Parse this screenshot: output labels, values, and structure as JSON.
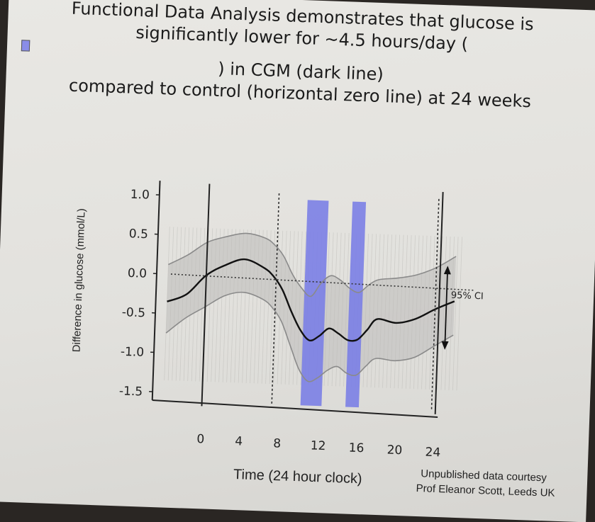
{
  "slide": {
    "title_lines": [
      "Functional Data Analysis demonstrates that glucose is",
      "significantly lower for ~4.5 hours/day (",
      ") in CGM (dark line)",
      "compared to control (horizontal zero line) at 24 weeks"
    ],
    "credit_lines": [
      "Unpublished data courtesy",
      "Prof Eleanor Scott, Leeds UK"
    ]
  },
  "chart_data": {
    "type": "line",
    "title": "",
    "xlabel": "Time (24 hour clock)",
    "ylabel": "Difference in glucose (mmol/L)",
    "xlim": [
      -4.2,
      25.5
    ],
    "ylim": [
      -1.5,
      1.0
    ],
    "x_ticks": [
      0,
      4,
      8,
      12,
      16,
      20,
      24
    ],
    "y_ticks": [
      1.0,
      0.5,
      0.0,
      -0.5,
      -1.0,
      -1.5
    ],
    "y_tick_labels": [
      "1.0",
      "0.5",
      "0.0",
      "-0.5",
      "-1.0",
      "-1.5"
    ],
    "series": [
      {
        "role": "mean-difference",
        "x": [
          -4,
          -2,
          0,
          2,
          4,
          6,
          7,
          8,
          9,
          10,
          11,
          12,
          13,
          14,
          15,
          16,
          17,
          18,
          20,
          22,
          24,
          26
        ],
        "y": [
          -0.35,
          -0.25,
          0.0,
          0.14,
          0.22,
          0.12,
          0.02,
          -0.15,
          -0.42,
          -0.65,
          -0.78,
          -0.72,
          -0.62,
          -0.68,
          -0.76,
          -0.75,
          -0.62,
          -0.48,
          -0.52,
          -0.46,
          -0.33,
          -0.22
        ]
      },
      {
        "role": "upper-95-ci",
        "x": [
          -4,
          -2,
          0,
          2,
          4,
          6,
          7,
          8,
          9,
          10,
          11,
          12,
          13,
          14,
          15,
          16,
          17,
          18,
          20,
          22,
          24,
          26
        ],
        "y": [
          0.12,
          0.25,
          0.42,
          0.5,
          0.55,
          0.5,
          0.42,
          0.28,
          0.05,
          -0.12,
          -0.22,
          -0.05,
          0.05,
          0.0,
          -0.1,
          -0.15,
          -0.05,
          0.02,
          0.05,
          0.1,
          0.2,
          0.35
        ]
      },
      {
        "role": "lower-95-ci",
        "x": [
          -4,
          -2,
          0,
          2,
          4,
          6,
          7,
          8,
          9,
          10,
          11,
          12,
          13,
          14,
          15,
          16,
          17,
          18,
          20,
          22,
          24,
          26
        ],
        "y": [
          -0.75,
          -0.55,
          -0.4,
          -0.25,
          -0.2,
          -0.28,
          -0.38,
          -0.55,
          -0.85,
          -1.15,
          -1.3,
          -1.25,
          -1.15,
          -1.1,
          -1.18,
          -1.2,
          -1.08,
          -0.98,
          -1.0,
          -0.95,
          -0.8,
          -0.65
        ]
      }
    ],
    "highlight_bands": [
      {
        "x_start": 10.3,
        "x_end": 12.5,
        "color": "#7b7fe6"
      },
      {
        "x_start": 15.0,
        "x_end": 16.4,
        "color": "#7b7fe6"
      }
    ],
    "reference_lines": {
      "zero_line": {
        "y": 0.0,
        "style": "dotted"
      },
      "solid_vertical": [
        0,
        24.4
      ],
      "dashed_vertical": [
        7.3,
        24.0
      ]
    },
    "annotations": [
      {
        "text": "95% CI",
        "x": 22.2,
        "y_range": [
          -0.3,
          0.3
        ]
      }
    ],
    "colors": {
      "ci_band": "#c9c8c5",
      "mean_line": "#111111",
      "ci_line": "#8a8a8a",
      "highlight": "#7b7fe6"
    }
  }
}
